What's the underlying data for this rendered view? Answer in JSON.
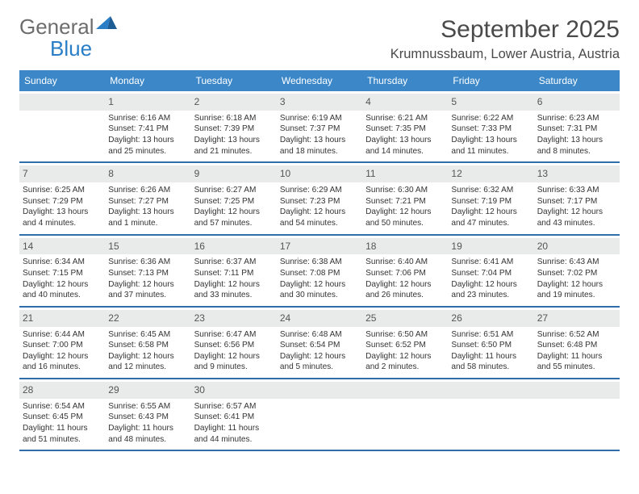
{
  "brand": {
    "name1": "General",
    "name2": "Blue"
  },
  "title": "September 2025",
  "location": "Krumnussbaum, Lower Austria, Austria",
  "colors": {
    "header_bg": "#3b87c8",
    "header_text": "#ffffff",
    "divider": "#2f6ea8",
    "daynum_bg": "#e9eaea",
    "text": "#333333",
    "logo_gray": "#6d6d6d",
    "logo_blue": "#2a7ec5"
  },
  "dow": [
    "Sunday",
    "Monday",
    "Tuesday",
    "Wednesday",
    "Thursday",
    "Friday",
    "Saturday"
  ],
  "weeks": [
    [
      {
        "day": "",
        "sunrise": "",
        "sunset": "",
        "daylight": ""
      },
      {
        "day": "1",
        "sunrise": "Sunrise: 6:16 AM",
        "sunset": "Sunset: 7:41 PM",
        "daylight": "Daylight: 13 hours and 25 minutes."
      },
      {
        "day": "2",
        "sunrise": "Sunrise: 6:18 AM",
        "sunset": "Sunset: 7:39 PM",
        "daylight": "Daylight: 13 hours and 21 minutes."
      },
      {
        "day": "3",
        "sunrise": "Sunrise: 6:19 AM",
        "sunset": "Sunset: 7:37 PM",
        "daylight": "Daylight: 13 hours and 18 minutes."
      },
      {
        "day": "4",
        "sunrise": "Sunrise: 6:21 AM",
        "sunset": "Sunset: 7:35 PM",
        "daylight": "Daylight: 13 hours and 14 minutes."
      },
      {
        "day": "5",
        "sunrise": "Sunrise: 6:22 AM",
        "sunset": "Sunset: 7:33 PM",
        "daylight": "Daylight: 13 hours and 11 minutes."
      },
      {
        "day": "6",
        "sunrise": "Sunrise: 6:23 AM",
        "sunset": "Sunset: 7:31 PM",
        "daylight": "Daylight: 13 hours and 8 minutes."
      }
    ],
    [
      {
        "day": "7",
        "sunrise": "Sunrise: 6:25 AM",
        "sunset": "Sunset: 7:29 PM",
        "daylight": "Daylight: 13 hours and 4 minutes."
      },
      {
        "day": "8",
        "sunrise": "Sunrise: 6:26 AM",
        "sunset": "Sunset: 7:27 PM",
        "daylight": "Daylight: 13 hours and 1 minute."
      },
      {
        "day": "9",
        "sunrise": "Sunrise: 6:27 AM",
        "sunset": "Sunset: 7:25 PM",
        "daylight": "Daylight: 12 hours and 57 minutes."
      },
      {
        "day": "10",
        "sunrise": "Sunrise: 6:29 AM",
        "sunset": "Sunset: 7:23 PM",
        "daylight": "Daylight: 12 hours and 54 minutes."
      },
      {
        "day": "11",
        "sunrise": "Sunrise: 6:30 AM",
        "sunset": "Sunset: 7:21 PM",
        "daylight": "Daylight: 12 hours and 50 minutes."
      },
      {
        "day": "12",
        "sunrise": "Sunrise: 6:32 AM",
        "sunset": "Sunset: 7:19 PM",
        "daylight": "Daylight: 12 hours and 47 minutes."
      },
      {
        "day": "13",
        "sunrise": "Sunrise: 6:33 AM",
        "sunset": "Sunset: 7:17 PM",
        "daylight": "Daylight: 12 hours and 43 minutes."
      }
    ],
    [
      {
        "day": "14",
        "sunrise": "Sunrise: 6:34 AM",
        "sunset": "Sunset: 7:15 PM",
        "daylight": "Daylight: 12 hours and 40 minutes."
      },
      {
        "day": "15",
        "sunrise": "Sunrise: 6:36 AM",
        "sunset": "Sunset: 7:13 PM",
        "daylight": "Daylight: 12 hours and 37 minutes."
      },
      {
        "day": "16",
        "sunrise": "Sunrise: 6:37 AM",
        "sunset": "Sunset: 7:11 PM",
        "daylight": "Daylight: 12 hours and 33 minutes."
      },
      {
        "day": "17",
        "sunrise": "Sunrise: 6:38 AM",
        "sunset": "Sunset: 7:08 PM",
        "daylight": "Daylight: 12 hours and 30 minutes."
      },
      {
        "day": "18",
        "sunrise": "Sunrise: 6:40 AM",
        "sunset": "Sunset: 7:06 PM",
        "daylight": "Daylight: 12 hours and 26 minutes."
      },
      {
        "day": "19",
        "sunrise": "Sunrise: 6:41 AM",
        "sunset": "Sunset: 7:04 PM",
        "daylight": "Daylight: 12 hours and 23 minutes."
      },
      {
        "day": "20",
        "sunrise": "Sunrise: 6:43 AM",
        "sunset": "Sunset: 7:02 PM",
        "daylight": "Daylight: 12 hours and 19 minutes."
      }
    ],
    [
      {
        "day": "21",
        "sunrise": "Sunrise: 6:44 AM",
        "sunset": "Sunset: 7:00 PM",
        "daylight": "Daylight: 12 hours and 16 minutes."
      },
      {
        "day": "22",
        "sunrise": "Sunrise: 6:45 AM",
        "sunset": "Sunset: 6:58 PM",
        "daylight": "Daylight: 12 hours and 12 minutes."
      },
      {
        "day": "23",
        "sunrise": "Sunrise: 6:47 AM",
        "sunset": "Sunset: 6:56 PM",
        "daylight": "Daylight: 12 hours and 9 minutes."
      },
      {
        "day": "24",
        "sunrise": "Sunrise: 6:48 AM",
        "sunset": "Sunset: 6:54 PM",
        "daylight": "Daylight: 12 hours and 5 minutes."
      },
      {
        "day": "25",
        "sunrise": "Sunrise: 6:50 AM",
        "sunset": "Sunset: 6:52 PM",
        "daylight": "Daylight: 12 hours and 2 minutes."
      },
      {
        "day": "26",
        "sunrise": "Sunrise: 6:51 AM",
        "sunset": "Sunset: 6:50 PM",
        "daylight": "Daylight: 11 hours and 58 minutes."
      },
      {
        "day": "27",
        "sunrise": "Sunrise: 6:52 AM",
        "sunset": "Sunset: 6:48 PM",
        "daylight": "Daylight: 11 hours and 55 minutes."
      }
    ],
    [
      {
        "day": "28",
        "sunrise": "Sunrise: 6:54 AM",
        "sunset": "Sunset: 6:45 PM",
        "daylight": "Daylight: 11 hours and 51 minutes."
      },
      {
        "day": "29",
        "sunrise": "Sunrise: 6:55 AM",
        "sunset": "Sunset: 6:43 PM",
        "daylight": "Daylight: 11 hours and 48 minutes."
      },
      {
        "day": "30",
        "sunrise": "Sunrise: 6:57 AM",
        "sunset": "Sunset: 6:41 PM",
        "daylight": "Daylight: 11 hours and 44 minutes."
      },
      {
        "day": "",
        "sunrise": "",
        "sunset": "",
        "daylight": ""
      },
      {
        "day": "",
        "sunrise": "",
        "sunset": "",
        "daylight": ""
      },
      {
        "day": "",
        "sunrise": "",
        "sunset": "",
        "daylight": ""
      },
      {
        "day": "",
        "sunrise": "",
        "sunset": "",
        "daylight": ""
      }
    ]
  ]
}
